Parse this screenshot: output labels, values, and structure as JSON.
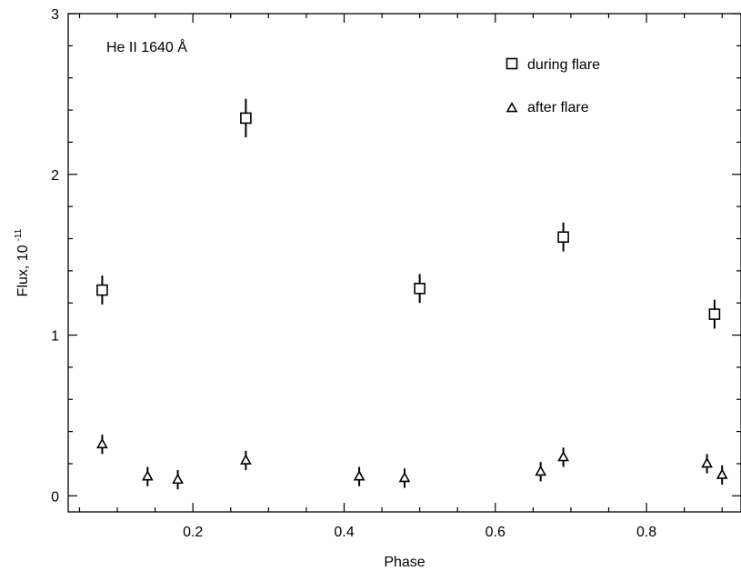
{
  "chart_data": {
    "type": "scatter",
    "annotation": "He II  1640 Å",
    "xlabel": "Phase",
    "ylabel_text": "Flux, 10",
    "ylabel_exp": "-11",
    "xlim": [
      0.035,
      0.925
    ],
    "ylim": [
      -0.1,
      3.0
    ],
    "x_ticks": [
      0.2,
      0.4,
      0.6,
      0.8
    ],
    "x_tick_labels": [
      "0.2",
      "0.4",
      "0.6",
      "0.8"
    ],
    "y_ticks": [
      0,
      1,
      2,
      3
    ],
    "y_tick_labels": [
      "0",
      "1",
      "2",
      "3"
    ],
    "legend_position": "top-right",
    "series": [
      {
        "name": "during flare",
        "marker": "square",
        "points": [
          {
            "x": 0.08,
            "y": 1.28,
            "err": 0.09
          },
          {
            "x": 0.27,
            "y": 2.35,
            "err": 0.12
          },
          {
            "x": 0.5,
            "y": 1.29,
            "err": 0.09
          },
          {
            "x": 0.69,
            "y": 1.61,
            "err": 0.09
          },
          {
            "x": 0.89,
            "y": 1.13,
            "err": 0.09
          }
        ]
      },
      {
        "name": "after flare",
        "marker": "triangle",
        "points": [
          {
            "x": 0.08,
            "y": 0.32,
            "err": 0.06
          },
          {
            "x": 0.14,
            "y": 0.12,
            "err": 0.06
          },
          {
            "x": 0.18,
            "y": 0.1,
            "err": 0.06
          },
          {
            "x": 0.27,
            "y": 0.22,
            "err": 0.06
          },
          {
            "x": 0.42,
            "y": 0.12,
            "err": 0.06
          },
          {
            "x": 0.48,
            "y": 0.11,
            "err": 0.06
          },
          {
            "x": 0.66,
            "y": 0.15,
            "err": 0.06
          },
          {
            "x": 0.69,
            "y": 0.24,
            "err": 0.06
          },
          {
            "x": 0.88,
            "y": 0.2,
            "err": 0.06
          },
          {
            "x": 0.9,
            "y": 0.13,
            "err": 0.06
          }
        ]
      }
    ]
  }
}
